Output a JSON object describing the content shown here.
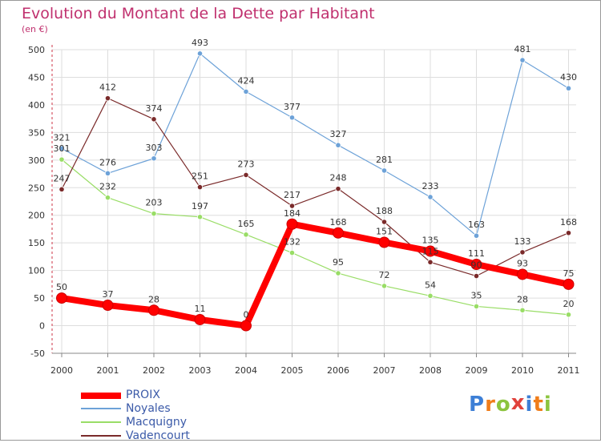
{
  "title": "Evolution du Montant de la Dette par Habitant",
  "subtitle": "(en €)",
  "logo": {
    "text": "Proxiti",
    "letters": [
      "P",
      "r",
      "o",
      "x",
      "i",
      "t",
      "i"
    ],
    "colors": [
      "#3d7fd6",
      "#f07d1a",
      "#8cc43f",
      "#e0413b",
      "#3d7fd6",
      "#f07d1a",
      "#8cc43f"
    ]
  },
  "colors": {
    "title": "#c0306e",
    "axis_text": "#333333",
    "grid": "#dddddd",
    "legend_text": "#3b5aa8"
  },
  "chart_data": {
    "type": "line",
    "title": "Evolution du Montant de la Dette par Habitant",
    "ylabel": "(en €)",
    "x": [
      "2000",
      "2001",
      "2002",
      "2003",
      "2004",
      "2005",
      "2006",
      "2007",
      "2008",
      "2009",
      "2010",
      "2011"
    ],
    "ylim": [
      -50,
      500
    ],
    "yticks": [
      -50,
      0,
      50,
      100,
      150,
      200,
      250,
      300,
      350,
      400,
      450,
      500
    ],
    "grid": true,
    "legend_position": "bottom-left",
    "series": [
      {
        "name": "PROIX",
        "color": "#ff0000",
        "values": [
          50,
          37,
          28,
          11,
          0,
          184,
          168,
          151,
          135,
          111,
          93,
          75
        ],
        "labels": [
          "50",
          "37",
          "28",
          "11",
          "0",
          "184",
          "168",
          "151",
          "135",
          "111",
          "93",
          "75"
        ]
      },
      {
        "name": "Noyales",
        "color": "#6da2d8",
        "values": [
          321,
          276,
          303,
          493,
          424,
          377,
          327,
          281,
          233,
          163,
          481,
          430
        ],
        "labels": [
          "321",
          "276",
          "303",
          "493",
          "424",
          "377",
          "327",
          "281",
          "233",
          "163",
          "481",
          "430"
        ]
      },
      {
        "name": "Macquigny",
        "color": "#99dd66",
        "values": [
          301,
          232,
          203,
          197,
          165,
          132,
          95,
          72,
          54,
          35,
          28,
          20
        ],
        "labels": [
          "301",
          "232",
          "203",
          "197",
          "165",
          "132",
          "95",
          "72",
          "54",
          "35",
          "28",
          "20"
        ]
      },
      {
        "name": "Vadencourt",
        "color": "#7a2a2a",
        "values": [
          247,
          412,
          374,
          251,
          273,
          217,
          248,
          188,
          115,
          90,
          133,
          168
        ],
        "labels": [
          "247",
          "412",
          "374",
          "251",
          "273",
          "217",
          "248",
          "188",
          "115",
          "90",
          "133",
          "168"
        ]
      }
    ]
  }
}
